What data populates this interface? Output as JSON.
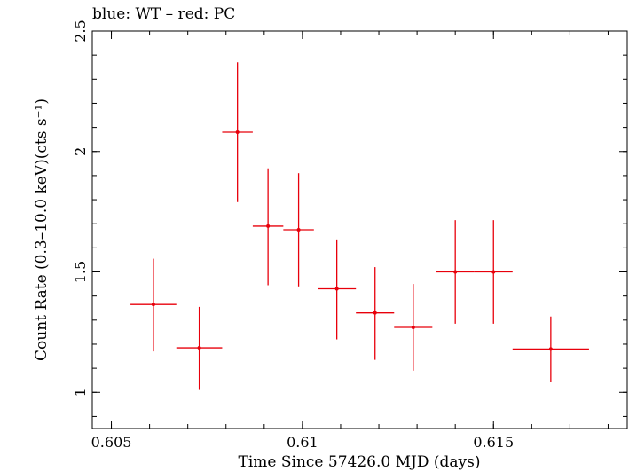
{
  "chart_data": {
    "type": "scatter",
    "title": "blue: WT – red: PC",
    "xlabel": "Time Since 57426.0 MJD (days)",
    "ylabel": "Count Rate (0.3–10.0 keV)(cts s⁻¹)",
    "xlim": [
      0.6045,
      0.6185
    ],
    "ylim": [
      0.85,
      2.5
    ],
    "x_ticks": [
      {
        "value": 0.605,
        "label": "0.605"
      },
      {
        "value": 0.61,
        "label": "0.61"
      },
      {
        "value": 0.615,
        "label": "0.615"
      }
    ],
    "y_ticks": [
      {
        "value": 1,
        "label": "1"
      },
      {
        "value": 1.5,
        "label": "1.5"
      },
      {
        "value": 2,
        "label": "2"
      },
      {
        "value": 2.5,
        "label": "2.5"
      }
    ],
    "grid": false,
    "series": [
      {
        "name": "PC",
        "color": "#e8000b",
        "points": [
          {
            "x": 0.6061,
            "y": 1.365,
            "xerr": 0.0006,
            "yerr_low": 0.195,
            "yerr_high": 0.19
          },
          {
            "x": 0.6073,
            "y": 1.185,
            "xerr": 0.0006,
            "yerr_low": 0.175,
            "yerr_high": 0.17
          },
          {
            "x": 0.6083,
            "y": 2.08,
            "xerr": 0.0004,
            "yerr_low": 0.29,
            "yerr_high": 0.29
          },
          {
            "x": 0.6091,
            "y": 1.69,
            "xerr": 0.0004,
            "yerr_low": 0.245,
            "yerr_high": 0.24
          },
          {
            "x": 0.6099,
            "y": 1.675,
            "xerr": 0.0004,
            "yerr_low": 0.235,
            "yerr_high": 0.235
          },
          {
            "x": 0.6109,
            "y": 1.43,
            "xerr": 0.0005,
            "yerr_low": 0.21,
            "yerr_high": 0.205
          },
          {
            "x": 0.6119,
            "y": 1.33,
            "xerr": 0.0005,
            "yerr_low": 0.195,
            "yerr_high": 0.19
          },
          {
            "x": 0.6129,
            "y": 1.27,
            "xerr": 0.0005,
            "yerr_low": 0.18,
            "yerr_high": 0.18
          },
          {
            "x": 0.614,
            "y": 1.5,
            "xerr": 0.0005,
            "yerr_low": 0.215,
            "yerr_high": 0.215
          },
          {
            "x": 0.615,
            "y": 1.5,
            "xerr": 0.0005,
            "yerr_low": 0.215,
            "yerr_high": 0.215
          },
          {
            "x": 0.6165,
            "y": 1.18,
            "xerr": 0.001,
            "yerr_low": 0.135,
            "yerr_high": 0.135
          }
        ]
      }
    ]
  }
}
